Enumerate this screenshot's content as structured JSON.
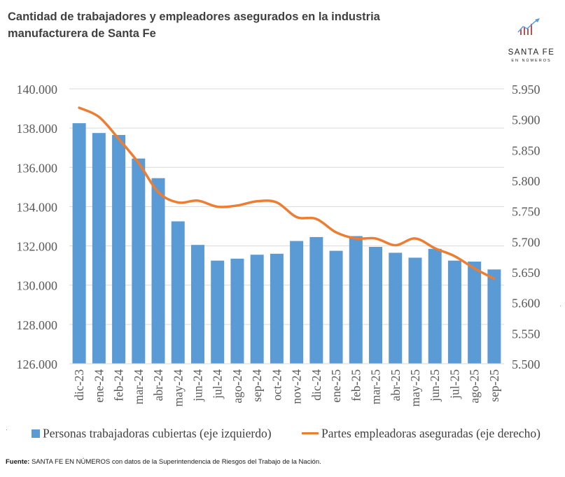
{
  "header": {
    "title": "Cantidad de trabajadores y empleadores asegurados en la industria manufacturera de Santa Fe"
  },
  "logo": {
    "main": "SANTA FE",
    "sub": "EN NÚMEROS",
    "colors": {
      "arrow": "#5b9bd5",
      "bars": "#c0504d"
    }
  },
  "chart_data": {
    "type": "bar",
    "title": "Cantidad de trabajadores y empleadores asegurados en la industria manufacturera de Santa Fe",
    "categories": [
      "dic-23",
      "ene-24",
      "feb-24",
      "mar-24",
      "abr-24",
      "may-24",
      "jun-24",
      "jul-24",
      "ago-24",
      "sep-24",
      "oct-24",
      "nov-24",
      "dic-24",
      "ene-25",
      "feb-25",
      "mar-25",
      "abr-25",
      "may-25",
      "jun-25",
      "jul-25",
      "ago-25",
      "sep-25"
    ],
    "series": [
      {
        "name": "Personas trabajadoras cubiertas (eje izquierdo)",
        "type": "bar",
        "axis": "left",
        "color": "#5b9bd5",
        "values": [
          138250,
          137750,
          137650,
          136450,
          135450,
          133250,
          132050,
          131250,
          131350,
          131550,
          131600,
          132250,
          132450,
          131750,
          132500,
          131950,
          131650,
          131400,
          131850,
          131250,
          131200,
          130800
        ]
      },
      {
        "name": "Partes empleadoras aseguradas (eje derecho)",
        "type": "line",
        "axis": "right",
        "color": "#ed7d31",
        "values": [
          5919,
          5904,
          5868,
          5829,
          5781,
          5764,
          5767,
          5757,
          5759,
          5766,
          5764,
          5740,
          5737,
          5715,
          5705,
          5705,
          5694,
          5705,
          5689,
          5676,
          5656,
          5639
        ]
      }
    ],
    "y_left": {
      "ylim": [
        126000,
        140000
      ],
      "ticks": [
        "126.000",
        "128.000",
        "130.000",
        "132.000",
        "134.000",
        "136.000",
        "138.000",
        "140.000"
      ]
    },
    "y_right": {
      "ylim": [
        5500,
        5950
      ],
      "ticks": [
        "5.500",
        "5.550",
        "5.600",
        "5.650",
        "5.700",
        "5.750",
        "5.800",
        "5.850",
        "5.900",
        "5.950"
      ]
    },
    "grid": true,
    "legend": "bottom"
  },
  "footer": {
    "label": "Fuente:",
    "text": " SANTA FE EN NÚMEROS con datos de la Superintendencia de Riesgos del Trabajo de la Nación."
  }
}
